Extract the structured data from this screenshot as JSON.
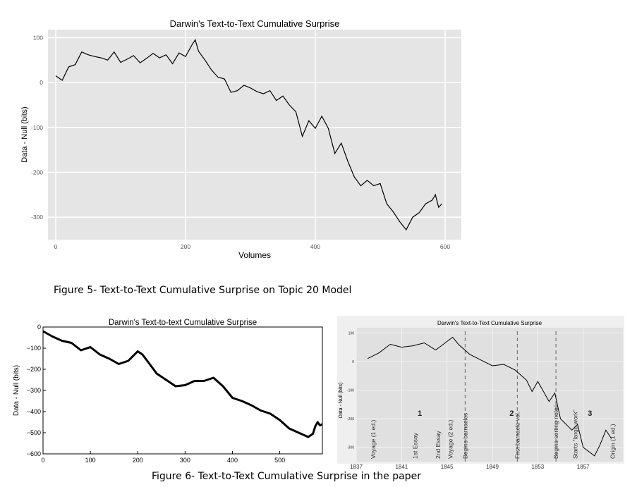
{
  "colors": {
    "ggplot_bg": "#e5e5e5",
    "grid": "#ffffff",
    "line": "#000000",
    "paper_bg": "#e0e0e0"
  },
  "captions": {
    "fig5": "Figure 5- Text-to-Text Cumulative Surprise on Topic 20 Model",
    "fig6": "Figure 6- Text-to-Text Cumulative Surprise in the paper"
  },
  "chart_data": [
    {
      "type": "line",
      "title": "Darwin's Text-to-Text Cumulative Surprise",
      "xlabel": "Volumes",
      "ylabel": "Data - Null (bits)",
      "xlim": [
        -12,
        625
      ],
      "ylim": [
        -350,
        118
      ],
      "xticks": [
        0,
        200,
        400,
        600
      ],
      "yticks": [
        100,
        0,
        -100,
        -200,
        -300
      ],
      "grid": true,
      "x": [
        0,
        5,
        10,
        20,
        30,
        40,
        50,
        60,
        70,
        80,
        90,
        100,
        110,
        120,
        130,
        140,
        150,
        160,
        170,
        180,
        190,
        200,
        210,
        215,
        220,
        230,
        240,
        250,
        260,
        270,
        280,
        290,
        300,
        310,
        320,
        330,
        340,
        350,
        360,
        370,
        380,
        390,
        400,
        410,
        420,
        430,
        440,
        450,
        460,
        470,
        480,
        490,
        500,
        510,
        520,
        530,
        540,
        550,
        560,
        570,
        580,
        585,
        590,
        595
      ],
      "y": [
        15,
        10,
        5,
        35,
        40,
        68,
        62,
        58,
        55,
        50,
        68,
        45,
        52,
        60,
        44,
        54,
        65,
        55,
        62,
        42,
        66,
        58,
        84,
        95,
        70,
        50,
        28,
        12,
        8,
        -22,
        -18,
        -6,
        -12,
        -20,
        -25,
        -18,
        -40,
        -30,
        -50,
        -65,
        -120,
        -85,
        -102,
        -75,
        -102,
        -158,
        -135,
        -175,
        -210,
        -230,
        -218,
        -230,
        -225,
        -270,
        -288,
        -310,
        -328,
        -300,
        -290,
        -270,
        -262,
        -250,
        -278,
        -270
      ]
    },
    {
      "type": "line",
      "title": "Darwin's Text-to-text Cumulative Surprise",
      "xlabel": "",
      "ylabel": "Data - Null (bits)",
      "xlim": [
        0,
        590
      ],
      "ylim": [
        -600,
        0
      ],
      "xticks": [
        0,
        100,
        200,
        300,
        400,
        500
      ],
      "yticks": [
        0,
        -100,
        -200,
        -300,
        -400,
        -500,
        -600
      ],
      "grid": false,
      "x": [
        0,
        20,
        40,
        60,
        80,
        100,
        120,
        140,
        160,
        180,
        200,
        210,
        220,
        240,
        260,
        280,
        300,
        320,
        340,
        360,
        380,
        400,
        420,
        440,
        460,
        480,
        500,
        520,
        540,
        560,
        570,
        575,
        580,
        585,
        590
      ],
      "y": [
        -20,
        -45,
        -65,
        -75,
        -110,
        -95,
        -130,
        -150,
        -175,
        -160,
        -115,
        -130,
        -160,
        -220,
        -250,
        -280,
        -275,
        -255,
        -255,
        -240,
        -280,
        -335,
        -350,
        -370,
        -395,
        -410,
        -440,
        -480,
        -500,
        -520,
        -505,
        -470,
        -450,
        -465,
        -460
      ]
    },
    {
      "type": "line",
      "title": "Darwin's Text-to-Text Cumulative Surprise",
      "xlabel": "",
      "ylabel": "Data - Null (bits)",
      "xlim": [
        1837,
        1860.5
      ],
      "ylim": [
        -350,
        118
      ],
      "xticks": [
        1837,
        1841,
        1845,
        1849,
        1853,
        1857
      ],
      "yticks": [
        100,
        0,
        -100,
        -200,
        -300
      ],
      "grid": true,
      "x": [
        1838,
        1839,
        1840,
        1841,
        1842,
        1843,
        1844,
        1845,
        1845.5,
        1846,
        1847,
        1848,
        1849,
        1850,
        1851,
        1852,
        1852.5,
        1853,
        1854,
        1854.5,
        1855,
        1856,
        1856.5,
        1857,
        1858,
        1858.5,
        1859,
        1859.5
      ],
      "y": [
        10,
        30,
        60,
        50,
        55,
        65,
        40,
        70,
        85,
        60,
        25,
        5,
        -15,
        -10,
        -30,
        -65,
        -105,
        -70,
        -140,
        -110,
        -200,
        -240,
        -220,
        -300,
        -330,
        -290,
        -240,
        -270
      ],
      "annotations": {
        "events": [
          {
            "label": "Voyage (1 ed.)",
            "year": 1838.5
          },
          {
            "label": "1st Essay",
            "year": 1842.2
          },
          {
            "label": "2nd Essay",
            "year": 1844.2
          },
          {
            "label": "Voyage (2 ed.)",
            "year": 1845.3
          },
          {
            "label": "Begins barnacles",
            "year": 1846.6
          },
          {
            "label": "First barnacle vol.",
            "year": 1851.2
          },
          {
            "label": "Begins sorting notes",
            "year": 1854.6
          },
          {
            "label": "Starts \"large work\"",
            "year": 1856.3
          },
          {
            "label": "Origin (1 ed.)",
            "year": 1859.6
          }
        ],
        "numbers": [
          {
            "label": "1",
            "year": 1842.6,
            "y": -190
          },
          {
            "label": "2",
            "year": 1850.7,
            "y": -190
          },
          {
            "label": "3",
            "year": 1857.6,
            "y": -190
          }
        ]
      }
    }
  ]
}
